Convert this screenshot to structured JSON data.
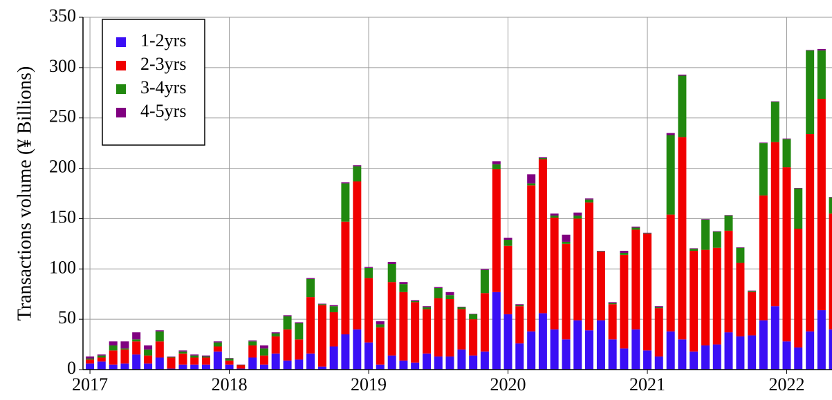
{
  "chart_data": {
    "type": "stacked-bar",
    "y_label": "Transactions volume (¥ Billions)",
    "x": [
      2017,
      2017.083,
      2017.167,
      2017.25,
      2017.333,
      2017.417,
      2017.5,
      2017.583,
      2017.667,
      2017.75,
      2017.833,
      2017.917,
      2018,
      2018.083,
      2018.167,
      2018.25,
      2018.333,
      2018.417,
      2018.5,
      2018.583,
      2018.667,
      2018.75,
      2018.833,
      2018.917,
      2019,
      2019.083,
      2019.167,
      2019.25,
      2019.333,
      2019.417,
      2019.5,
      2019.583,
      2019.667,
      2019.75,
      2019.833,
      2019.917,
      2020,
      2020.083,
      2020.167,
      2020.25,
      2020.333,
      2020.417,
      2020.5,
      2020.583,
      2020.667,
      2020.75,
      2020.833,
      2020.917,
      2021,
      2021.083,
      2021.167,
      2021.25,
      2021.333,
      2021.417,
      2021.5,
      2021.583,
      2021.667,
      2021.75,
      2021.833,
      2021.917,
      2022,
      2022.083,
      2022.167,
      2022.25,
      2022.333
    ],
    "series": [
      {
        "name": "1-2yrs",
        "color": "#3a0ff5",
        "values": [
          6,
          8,
          5,
          6,
          15,
          6,
          12,
          1,
          5,
          5,
          5,
          18,
          5,
          1,
          12,
          5,
          16,
          9,
          10,
          16,
          3,
          23,
          35,
          40,
          27,
          5,
          14,
          9,
          7,
          16,
          13,
          13,
          20,
          14,
          18,
          77,
          55,
          26,
          38,
          56,
          40,
          30,
          49,
          39,
          49,
          30,
          21,
          40,
          19,
          13,
          38,
          30,
          18,
          24,
          25,
          37,
          33,
          34,
          49,
          63,
          28,
          22,
          38,
          59,
          40
        ]
      },
      {
        "name": "2-3yrs",
        "color": "#f00000",
        "values": [
          4,
          4,
          14,
          14,
          13,
          8,
          16,
          11,
          11,
          7,
          7,
          5,
          4,
          3.5,
          12,
          9,
          17,
          31,
          20,
          56,
          61,
          34,
          112,
          147,
          64,
          37,
          73,
          68,
          60,
          44,
          58,
          57,
          40,
          36,
          58,
          122,
          68,
          37,
          145,
          153,
          111,
          95,
          101,
          127,
          68,
          35,
          93,
          99,
          116,
          48,
          116,
          201,
          100,
          95,
          96,
          101,
          73,
          43,
          124,
          163,
          173,
          118,
          196,
          210,
          115
        ]
      },
      {
        "name": "3-4yrs",
        "color": "#21880f",
        "values": [
          1,
          2,
          5,
          1,
          2,
          6,
          10,
          0.5,
          2,
          2,
          1,
          4,
          2,
          0.3,
          4,
          7,
          3,
          13,
          16,
          18,
          1,
          6,
          38,
          15,
          10,
          3,
          18,
          8,
          1,
          2,
          10,
          4,
          2,
          5,
          23,
          5,
          6,
          1,
          2,
          1,
          2,
          2,
          3,
          3,
          0.5,
          1,
          2,
          2,
          0.5,
          1,
          79,
          61,
          2,
          30,
          16,
          15,
          15,
          1,
          52,
          40,
          28,
          40,
          83,
          48,
          16
        ]
      },
      {
        "name": "4-5yrs",
        "color": "#800080",
        "values": [
          2,
          1,
          4,
          7,
          7,
          4,
          1,
          0.5,
          1,
          1,
          1,
          1,
          0.5,
          0.2,
          1,
          3,
          1,
          1,
          1,
          1,
          0.5,
          1,
          1,
          1,
          1,
          3,
          2,
          2,
          1,
          1,
          1,
          3,
          0.5,
          0.5,
          1,
          3,
          2,
          1,
          9,
          1,
          2,
          7,
          3,
          1,
          0.5,
          1,
          2,
          1,
          0.5,
          1,
          2,
          1,
          0.5,
          0.5,
          0.5,
          0.5,
          0.5,
          0.5,
          0.5,
          0.5,
          0.5,
          0.5,
          0.5,
          1.5,
          0.5
        ]
      }
    ],
    "xlim": [
      2016.95,
      2022.325
    ],
    "xticks": [
      2017,
      2018,
      2019,
      2020,
      2021,
      2022
    ],
    "ylim": [
      0,
      350
    ],
    "yticks": [
      0,
      50,
      100,
      150,
      200,
      250,
      300,
      350
    ],
    "grid": true,
    "legend": "upper left"
  }
}
